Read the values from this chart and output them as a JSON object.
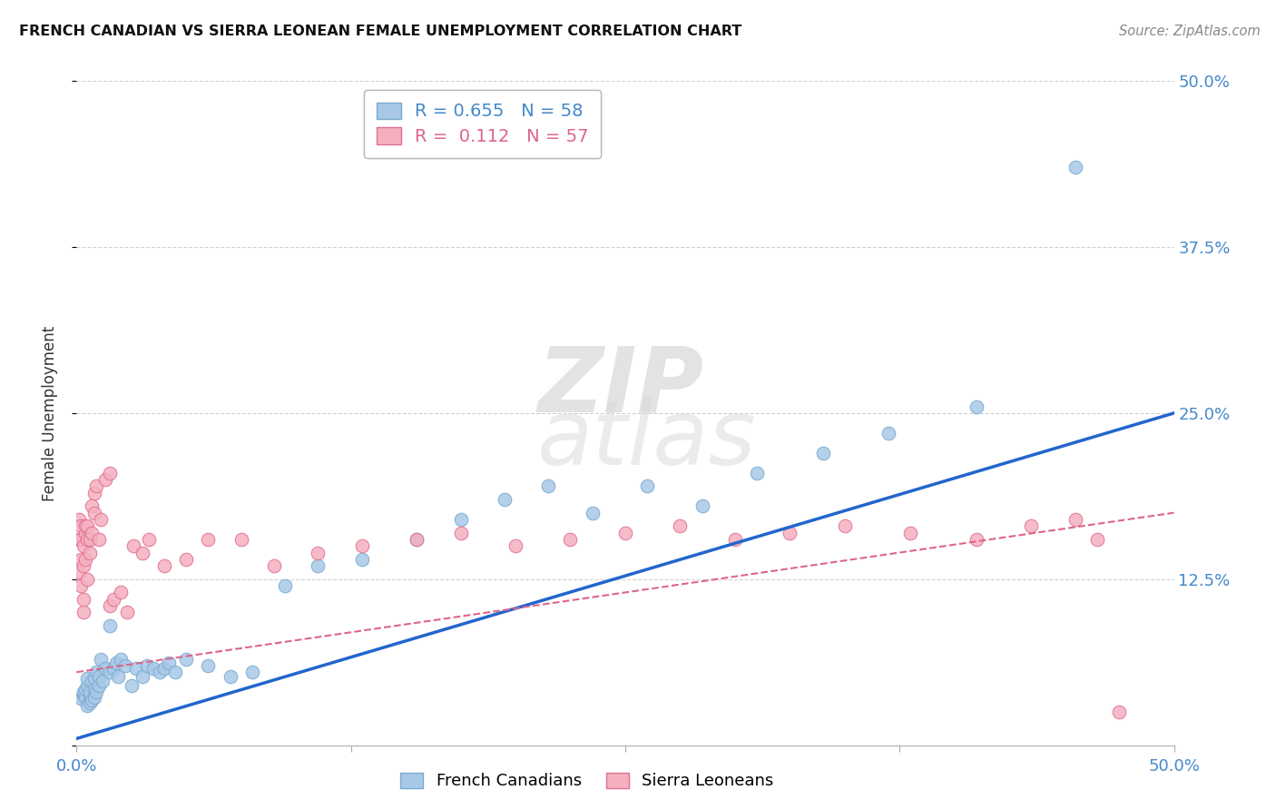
{
  "title": "FRENCH CANADIAN VS SIERRA LEONEAN FEMALE UNEMPLOYMENT CORRELATION CHART",
  "source": "Source: ZipAtlas.com",
  "ylabel_label": "Female Unemployment",
  "x_min": 0.0,
  "x_max": 0.5,
  "y_min": 0.0,
  "y_max": 0.5,
  "x_ticks": [
    0.0,
    0.125,
    0.25,
    0.375,
    0.5
  ],
  "x_tick_labels": [
    "0.0%",
    "",
    "",
    "",
    "50.0%"
  ],
  "y_ticks": [
    0.0,
    0.125,
    0.25,
    0.375,
    0.5
  ],
  "y_tick_labels_right": [
    "",
    "12.5%",
    "25.0%",
    "37.5%",
    "50.0%"
  ],
  "french_canadians_color": "#a8c8e8",
  "french_canadians_edge": "#7aaad0",
  "sierra_leoneans_color": "#f5b0c0",
  "sierra_leoneans_edge": "#e07090",
  "trendline_blue": "#2266cc",
  "trendline_pink": "#dd6688",
  "watermark_top": "ZIP",
  "watermark_bottom": "atlas",
  "legend_R_blue": "0.655",
  "legend_N_blue": "58",
  "legend_R_pink": "0.112",
  "legend_N_pink": "57",
  "fc_intercept": 0.005,
  "fc_slope": 0.49,
  "sl_intercept": 0.055,
  "sl_slope": 0.24,
  "french_canadians_x": [
    0.002,
    0.003,
    0.003,
    0.004,
    0.004,
    0.005,
    0.005,
    0.005,
    0.006,
    0.006,
    0.006,
    0.007,
    0.007,
    0.008,
    0.008,
    0.008,
    0.009,
    0.009,
    0.01,
    0.01,
    0.011,
    0.012,
    0.013,
    0.015,
    0.015,
    0.017,
    0.018,
    0.019,
    0.02,
    0.022,
    0.025,
    0.027,
    0.03,
    0.032,
    0.035,
    0.038,
    0.04,
    0.042,
    0.045,
    0.05,
    0.06,
    0.07,
    0.08,
    0.095,
    0.11,
    0.13,
    0.155,
    0.175,
    0.195,
    0.215,
    0.235,
    0.26,
    0.285,
    0.31,
    0.34,
    0.37,
    0.41,
    0.455
  ],
  "french_canadians_y": [
    0.035,
    0.038,
    0.04,
    0.036,
    0.042,
    0.03,
    0.045,
    0.05,
    0.032,
    0.038,
    0.04,
    0.034,
    0.048,
    0.042,
    0.05,
    0.036,
    0.055,
    0.04,
    0.045,
    0.052,
    0.065,
    0.048,
    0.058,
    0.09,
    0.055,
    0.058,
    0.062,
    0.052,
    0.065,
    0.06,
    0.045,
    0.058,
    0.052,
    0.06,
    0.058,
    0.055,
    0.058,
    0.062,
    0.055,
    0.065,
    0.06,
    0.052,
    0.055,
    0.12,
    0.135,
    0.14,
    0.155,
    0.17,
    0.185,
    0.195,
    0.175,
    0.195,
    0.18,
    0.205,
    0.22,
    0.235,
    0.255,
    0.435
  ],
  "sierra_leoneans_x": [
    0.001,
    0.001,
    0.001,
    0.002,
    0.002,
    0.002,
    0.002,
    0.003,
    0.003,
    0.003,
    0.003,
    0.004,
    0.004,
    0.004,
    0.005,
    0.005,
    0.005,
    0.006,
    0.006,
    0.007,
    0.007,
    0.008,
    0.008,
    0.009,
    0.01,
    0.011,
    0.013,
    0.015,
    0.015,
    0.017,
    0.02,
    0.023,
    0.026,
    0.03,
    0.033,
    0.04,
    0.05,
    0.06,
    0.075,
    0.09,
    0.11,
    0.13,
    0.155,
    0.175,
    0.2,
    0.225,
    0.25,
    0.275,
    0.3,
    0.325,
    0.35,
    0.38,
    0.41,
    0.435,
    0.455,
    0.465,
    0.475
  ],
  "sierra_leoneans_y": [
    0.155,
    0.17,
    0.13,
    0.14,
    0.155,
    0.165,
    0.12,
    0.135,
    0.15,
    0.1,
    0.11,
    0.16,
    0.165,
    0.14,
    0.155,
    0.125,
    0.165,
    0.145,
    0.155,
    0.16,
    0.18,
    0.175,
    0.19,
    0.195,
    0.155,
    0.17,
    0.2,
    0.205,
    0.105,
    0.11,
    0.115,
    0.1,
    0.15,
    0.145,
    0.155,
    0.135,
    0.14,
    0.155,
    0.155,
    0.135,
    0.145,
    0.15,
    0.155,
    0.16,
    0.15,
    0.155,
    0.16,
    0.165,
    0.155,
    0.16,
    0.165,
    0.16,
    0.155,
    0.165,
    0.17,
    0.155,
    0.025
  ]
}
